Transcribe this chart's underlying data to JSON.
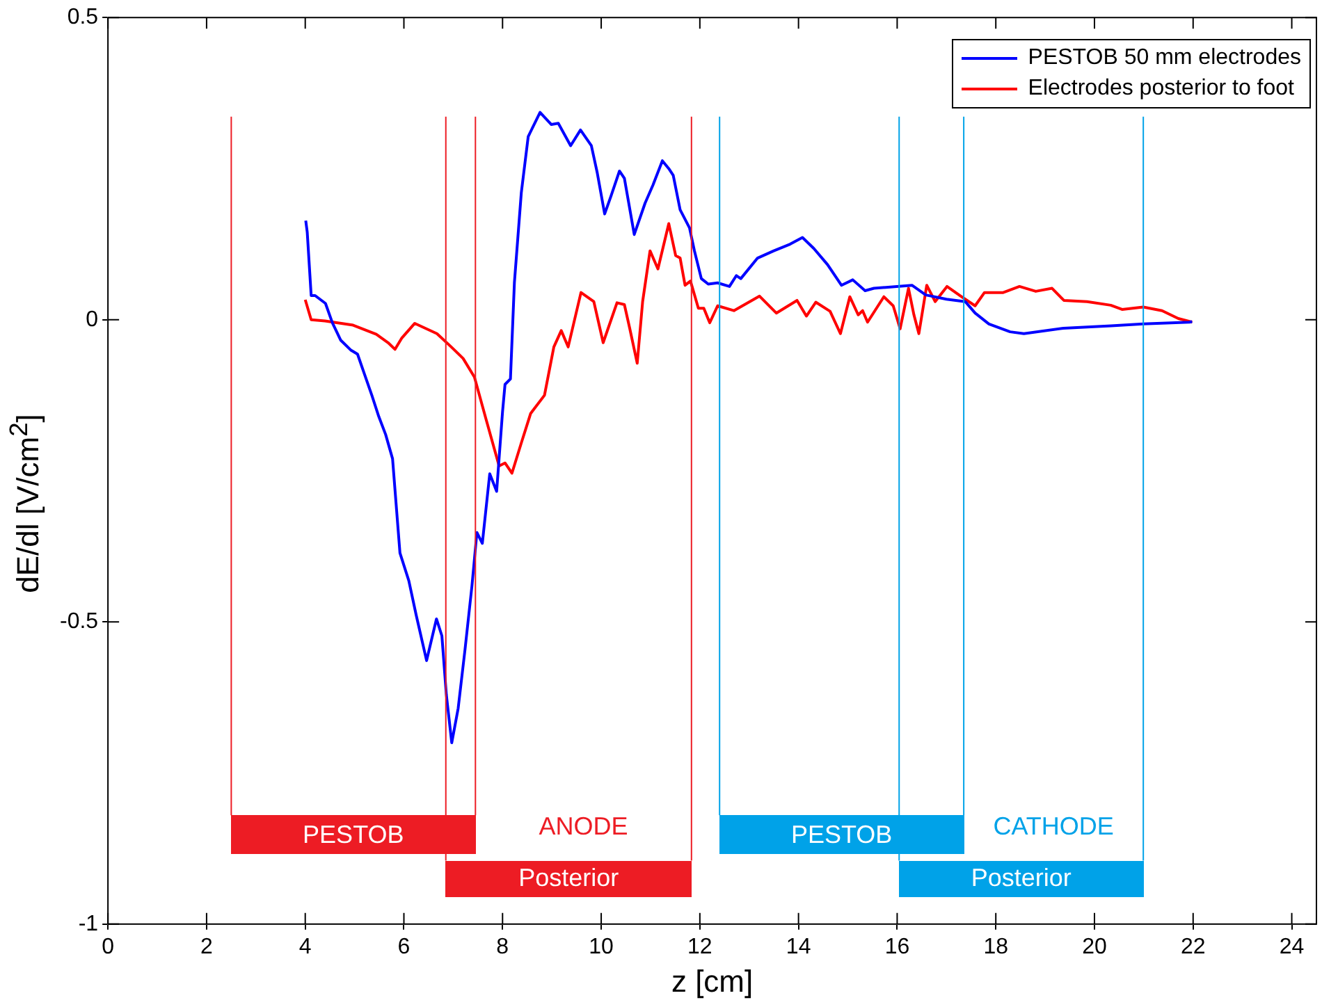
{
  "chart_data": {
    "type": "line",
    "xlabel": "z [cm]",
    "ylabel": "dE/dl  [V/cm$^{2}$]",
    "xlim": [
      0,
      24.5
    ],
    "xticks": [
      0,
      2,
      4,
      6,
      8,
      10,
      12,
      14,
      16,
      18,
      20,
      22,
      24
    ],
    "ylim": [
      -1,
      0.5
    ],
    "yticks": [
      -1,
      -0.5,
      0,
      0.5
    ],
    "grid": false,
    "legend": "top right",
    "line_style": "solid",
    "marker": "none",
    "series": [
      {
        "name": "PESTOB 50 mm electrodes",
        "color": "#0000ff",
        "x": [
          4.01,
          4.04,
          4.12,
          4.2,
          4.41,
          4.55,
          4.72,
          4.92,
          5.06,
          5.2,
          5.35,
          5.49,
          5.63,
          5.77,
          5.92,
          6.1,
          6.25,
          6.46,
          6.66,
          6.77,
          6.86,
          6.97,
          7.1,
          7.24,
          7.38,
          7.48,
          7.59,
          7.74,
          7.88,
          8.0,
          8.05,
          8.16,
          8.24,
          8.38,
          8.52,
          8.76,
          8.99,
          9.13,
          9.38,
          9.58,
          9.8,
          9.92,
          10.07,
          10.2,
          10.37,
          10.47,
          10.67,
          10.89,
          11.05,
          11.24,
          11.37,
          11.46,
          11.6,
          11.79,
          11.89,
          12.03,
          12.17,
          12.36,
          12.6,
          12.74,
          12.83,
          13.17,
          13.5,
          13.83,
          14.08,
          14.31,
          14.59,
          14.87,
          15.1,
          15.35,
          15.53,
          16.3,
          16.58,
          17.0,
          17.38,
          17.58,
          17.86,
          18.29,
          18.57,
          19.37,
          20.34,
          20.99,
          21.93,
          21.98
        ],
        "values": [
          0.164,
          0.145,
          0.04,
          0.04,
          0.027,
          -0.005,
          -0.034,
          -0.05,
          -0.057,
          -0.09,
          -0.125,
          -0.16,
          -0.19,
          -0.23,
          -0.386,
          -0.432,
          -0.489,
          -0.564,
          -0.495,
          -0.523,
          -0.62,
          -0.7,
          -0.643,
          -0.545,
          -0.44,
          -0.352,
          -0.37,
          -0.255,
          -0.284,
          -0.152,
          -0.107,
          -0.098,
          0.061,
          0.21,
          0.303,
          0.343,
          0.323,
          0.325,
          0.288,
          0.314,
          0.288,
          0.243,
          0.175,
          0.205,
          0.246,
          0.234,
          0.141,
          0.193,
          0.223,
          0.263,
          0.25,
          0.239,
          0.182,
          0.152,
          0.114,
          0.068,
          0.059,
          0.061,
          0.055,
          0.073,
          0.068,
          0.102,
          0.114,
          0.125,
          0.136,
          0.118,
          0.091,
          0.057,
          0.066,
          0.048,
          0.052,
          0.057,
          0.041,
          0.034,
          0.03,
          0.011,
          -0.007,
          -0.02,
          -0.023,
          -0.014,
          -0.01,
          -0.007,
          -0.004,
          -0.003
        ]
      },
      {
        "name": "Electrodes posterior to foot",
        "color": "#ff0000",
        "x": [
          4.0,
          4.12,
          4.4,
          4.97,
          5.44,
          5.68,
          5.82,
          5.96,
          6.22,
          6.67,
          6.96,
          7.2,
          7.43,
          7.67,
          7.93,
          8.05,
          8.19,
          8.38,
          8.57,
          8.85,
          9.04,
          9.19,
          9.33,
          9.59,
          9.85,
          10.04,
          10.32,
          10.47,
          10.58,
          10.73,
          10.84,
          10.99,
          11.15,
          11.37,
          11.51,
          11.6,
          11.7,
          11.81,
          11.97,
          12.08,
          12.2,
          12.36,
          12.69,
          13.21,
          13.55,
          13.97,
          14.16,
          14.35,
          14.64,
          14.85,
          15.04,
          15.21,
          15.3,
          15.4,
          15.73,
          15.92,
          16.06,
          16.23,
          16.34,
          16.44,
          16.6,
          16.77,
          17.01,
          17.29,
          17.58,
          17.77,
          18.15,
          18.48,
          18.81,
          19.14,
          19.38,
          19.85,
          20.33,
          20.56,
          20.99,
          21.37,
          21.7,
          21.98
        ],
        "values": [
          0.033,
          0.0,
          -0.002,
          -0.009,
          -0.024,
          -0.038,
          -0.049,
          -0.03,
          -0.006,
          -0.023,
          -0.045,
          -0.064,
          -0.095,
          -0.166,
          -0.242,
          -0.237,
          -0.254,
          -0.204,
          -0.155,
          -0.125,
          -0.045,
          -0.018,
          -0.045,
          0.045,
          0.03,
          -0.038,
          0.028,
          0.025,
          -0.015,
          -0.072,
          0.03,
          0.114,
          0.084,
          0.159,
          0.106,
          0.102,
          0.057,
          0.064,
          0.019,
          0.019,
          -0.005,
          0.023,
          0.015,
          0.039,
          0.011,
          0.032,
          0.006,
          0.029,
          0.014,
          -0.023,
          0.038,
          0.008,
          0.015,
          -0.004,
          0.038,
          0.023,
          -0.015,
          0.052,
          0.008,
          -0.023,
          0.057,
          0.03,
          0.055,
          0.039,
          0.023,
          0.045,
          0.045,
          0.055,
          0.047,
          0.052,
          0.032,
          0.03,
          0.024,
          0.017,
          0.021,
          0.015,
          0.002,
          -0.004
        ]
      }
    ],
    "ref_lines": [
      {
        "axis": "x",
        "value": 2.5,
        "color": "#ed1c24"
      },
      {
        "axis": "x",
        "value": 7.45,
        "color": "#ed1c24"
      },
      {
        "axis": "x",
        "value": 6.85,
        "color": "#ed1c24"
      },
      {
        "axis": "x",
        "value": 11.83,
        "color": "#ed1c24"
      },
      {
        "axis": "x",
        "value": 12.4,
        "color": "#00a2e8"
      },
      {
        "axis": "x",
        "value": 17.35,
        "color": "#00a2e8"
      },
      {
        "axis": "x",
        "value": 16.04,
        "color": "#00a2e8"
      },
      {
        "axis": "x",
        "value": 20.99,
        "color": "#00a2e8"
      }
    ],
    "annotations": [
      "PESTOB",
      "Posterior",
      "PESTOB",
      "Posterior",
      "ANODE",
      "CATHODE"
    ]
  }
}
